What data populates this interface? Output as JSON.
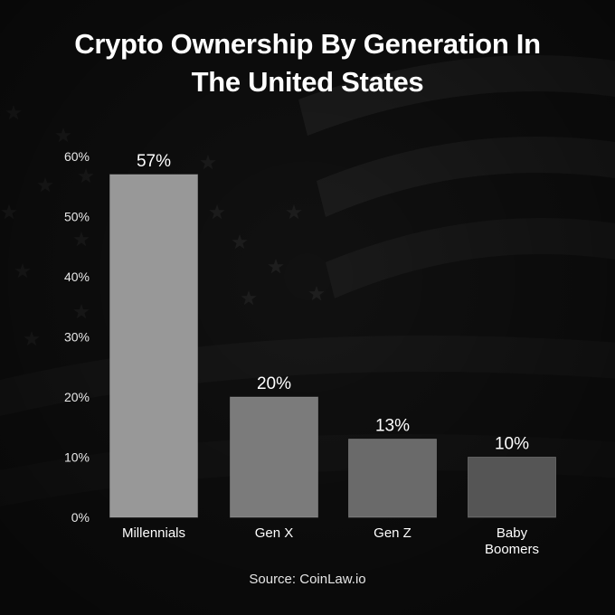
{
  "title_line1": "Crypto Ownership By Generation In",
  "title_line2": "The United States",
  "source": "Source: CoinLaw.io",
  "chart_data": {
    "type": "bar",
    "categories": [
      [
        "Millennials"
      ],
      [
        "Gen X"
      ],
      [
        "Gen Z"
      ],
      [
        "Baby",
        "Boomers"
      ]
    ],
    "values": [
      57,
      20,
      13,
      10
    ],
    "value_labels": [
      "57%",
      "20%",
      "13%",
      "10%"
    ],
    "yticks": [
      0,
      10,
      20,
      30,
      40,
      50,
      60
    ],
    "ytick_labels": [
      "0%",
      "10%",
      "20%",
      "30%",
      "40%",
      "50%",
      "60%"
    ],
    "ylim": [
      0,
      60
    ],
    "grid": false,
    "bar_colors": [
      "#989898",
      "#7b7b7b",
      "#6a6a6a",
      "#555555"
    ]
  }
}
